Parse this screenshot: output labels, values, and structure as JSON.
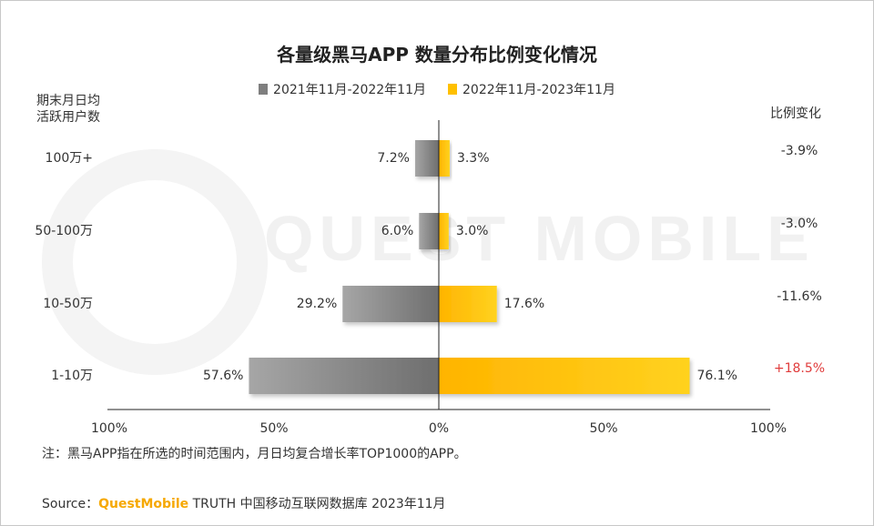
{
  "title": "各量级黑马APP 数量分布比例变化情况",
  "legend": {
    "series1": "2021年11月-2022年11月",
    "series2": "2022年11月-2023年11月"
  },
  "y_axis_label_line1": "期末月日均",
  "y_axis_label_line2": "活跃用户数",
  "change_header": "比例变化",
  "watermark": "QUEST MOBILE",
  "note": "注：黑马APP指在所选的时间范围内，月日均复合增长率TOP1000的APP。",
  "source": {
    "prefix": "Source：",
    "brand": "QuestMobile",
    "rest": " TRUTH 中国移动互联网数据库 2023年11月"
  },
  "colors": {
    "series1": "#7f7f7f",
    "series2": "#ffc000",
    "negative_change": "#333333",
    "positive_change": "#e03c3c"
  },
  "chart_data": {
    "type": "bar",
    "orientation": "horizontal-diverging",
    "categories": [
      "100万+",
      "50-100万",
      "10-50万",
      "1-10万"
    ],
    "series": [
      {
        "name": "2021年11月-2022年11月",
        "values": [
          7.2,
          6.0,
          29.2,
          57.6
        ],
        "labels": [
          "7.2%",
          "6.0%",
          "29.2%",
          "57.6%"
        ]
      },
      {
        "name": "2022年11月-2023年11月",
        "values": [
          3.3,
          3.0,
          17.6,
          76.1
        ],
        "labels": [
          "3.3%",
          "3.0%",
          "17.6%",
          "76.1%"
        ]
      }
    ],
    "change": [
      "-3.9%",
      "-3.0%",
      "-11.6%",
      "+18.5%"
    ],
    "xlim": [
      -100,
      100
    ],
    "x_ticks": [
      "100%",
      "50%",
      "0%",
      "50%",
      "100%"
    ],
    "x_tick_values": [
      -100,
      -50,
      0,
      50,
      100
    ]
  }
}
